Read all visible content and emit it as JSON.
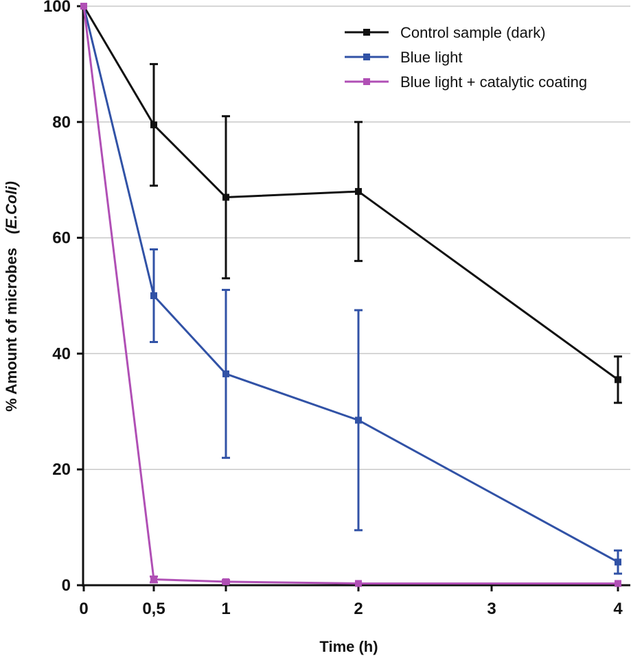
{
  "chart_data": {
    "type": "line",
    "title": "",
    "xlabel": "Time (h)",
    "ylabel": "% Amount of microbes",
    "ylabel_italic": "(E.Coli)",
    "ylim": [
      0,
      100
    ],
    "yticks": [
      0,
      20,
      40,
      60,
      80,
      100
    ],
    "xticks": [
      {
        "value": 0,
        "label": "0"
      },
      {
        "value": 0.5,
        "label": "0,5"
      },
      {
        "value": 1,
        "label": "1"
      },
      {
        "value": 2,
        "label": "2"
      },
      {
        "value": 3,
        "label": "3"
      },
      {
        "value": 4,
        "label": "4"
      }
    ],
    "grid": true,
    "legend_position": "top-right",
    "series": [
      {
        "name": "Control sample (dark)",
        "color": "#111111",
        "x": [
          0,
          0.5,
          1,
          2,
          4
        ],
        "values": [
          100,
          79.5,
          67,
          68,
          35.5
        ],
        "errors": [
          0,
          10.5,
          14,
          12,
          4
        ]
      },
      {
        "name": "Blue light",
        "color": "#3152a6",
        "x": [
          0,
          0.5,
          1,
          2,
          4
        ],
        "values": [
          100,
          50,
          36.5,
          28.5,
          4
        ],
        "errors": [
          0,
          8,
          14.5,
          19,
          2
        ]
      },
      {
        "name": "Blue light + catalytic coating",
        "color": "#b04fb5",
        "x": [
          0,
          0.5,
          1,
          2,
          4
        ],
        "values": [
          100,
          1,
          0.6,
          0.3,
          0.3
        ],
        "errors": [
          0,
          0.5,
          0.3,
          0,
          0
        ]
      }
    ]
  }
}
